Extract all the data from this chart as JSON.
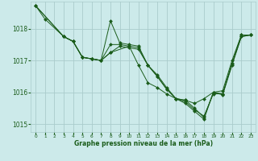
{
  "background_color": "#cceaea",
  "grid_color": "#aacccc",
  "line_color": "#1a5c1a",
  "marker_color": "#1a5c1a",
  "title": "Graphe pression niveau de la mer (hPa)",
  "xlim": [
    -0.5,
    23.5
  ],
  "ylim": [
    1014.75,
    1018.85
  ],
  "yticks": [
    1015,
    1016,
    1017,
    1018
  ],
  "xticks": [
    0,
    1,
    2,
    3,
    4,
    5,
    6,
    7,
    8,
    9,
    10,
    11,
    12,
    13,
    14,
    15,
    16,
    17,
    18,
    19,
    20,
    21,
    22,
    23
  ],
  "series": [
    {
      "x": [
        0,
        1,
        3,
        4,
        5,
        6,
        7,
        8,
        9,
        10,
        11,
        12,
        13,
        14,
        15,
        16,
        17,
        18,
        19,
        20,
        21,
        22,
        23
      ],
      "y": [
        1018.72,
        1018.3,
        1017.75,
        1017.6,
        1017.1,
        1017.05,
        1017.0,
        1018.25,
        1017.55,
        1017.5,
        1017.45,
        1016.85,
        1016.55,
        1016.15,
        1015.8,
        1015.75,
        1015.65,
        1015.8,
        1016.0,
        1016.05,
        1017.0,
        1017.8,
        1017.8
      ]
    },
    {
      "x": [
        0,
        3,
        4,
        5,
        6,
        7,
        8,
        9,
        10,
        11,
        12,
        13,
        14,
        15,
        16,
        17,
        18,
        19,
        20,
        21,
        22,
        23
      ],
      "y": [
        1018.72,
        1017.75,
        1017.6,
        1017.1,
        1017.05,
        1017.0,
        1017.25,
        1017.45,
        1017.4,
        1017.35,
        1016.85,
        1016.5,
        1016.1,
        1015.8,
        1015.7,
        1015.45,
        1015.25,
        1015.95,
        1015.95,
        1016.9,
        1017.75,
        1017.8
      ]
    },
    {
      "x": [
        0,
        3,
        4,
        5,
        6,
        7,
        8,
        9,
        10,
        11,
        12,
        13,
        14,
        15,
        16,
        17,
        18,
        19,
        20,
        21,
        22,
        23
      ],
      "y": [
        1018.72,
        1017.75,
        1017.6,
        1017.1,
        1017.05,
        1017.0,
        1017.5,
        1017.5,
        1017.45,
        1017.4,
        1016.85,
        1016.5,
        1016.1,
        1015.8,
        1015.75,
        1015.5,
        1015.2,
        1016.0,
        1015.95,
        1016.9,
        1017.8,
        1017.8
      ]
    },
    {
      "x": [
        3,
        4,
        5,
        6,
        7,
        8,
        10,
        11,
        12,
        13,
        14,
        15,
        16,
        17,
        18,
        19,
        20,
        21,
        22,
        23
      ],
      "y": [
        1017.75,
        1017.6,
        1017.1,
        1017.05,
        1017.0,
        1017.25,
        1017.45,
        1016.85,
        1016.3,
        1016.15,
        1015.95,
        1015.8,
        1015.65,
        1015.4,
        1015.15,
        1016.0,
        1015.92,
        1016.85,
        1017.75,
        1017.8
      ]
    }
  ]
}
